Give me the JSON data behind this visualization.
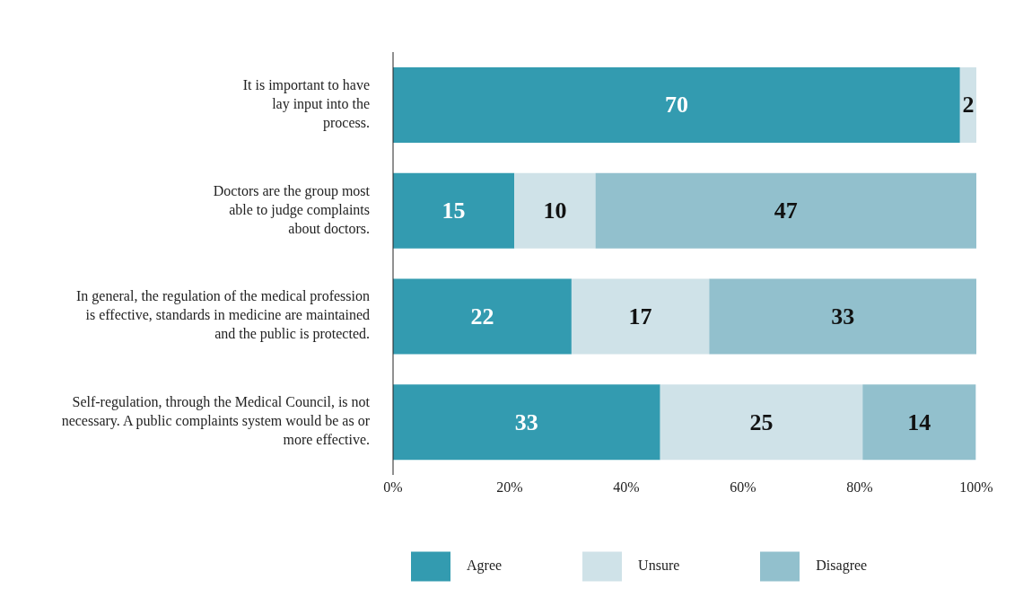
{
  "chart_data": {
    "type": "bar",
    "orientation": "horizontal",
    "stacked": true,
    "categories": [
      "It is important to have lay input into the process.",
      "Doctors are the group most able to judge complaints about doctors.",
      "In general, the regulation of the medical profession is effective, standards in medicine are maintained and the public is protected.",
      "Self-regulation, through the Medical Council, is not necessary. A public complaints system would be as or more effective."
    ],
    "series": [
      {
        "name": "Agree",
        "color": "#339bb0",
        "values": [
          97.2,
          20.8,
          30.6,
          45.8
        ]
      },
      {
        "name": "Unsure",
        "color": "#cfe2e8",
        "values": [
          2.8,
          13.9,
          23.6,
          34.7
        ]
      },
      {
        "name": "Disagree",
        "color": "#92c0cd",
        "values": [
          null,
          65.3,
          45.8,
          19.4
        ]
      }
    ],
    "annotations": [
      "70",
      "2",
      "15",
      "10",
      "47",
      "22",
      "17",
      "33",
      "33",
      "25",
      "14"
    ],
    "xlim": [
      0,
      100
    ],
    "xticks": [
      {
        "value": 0,
        "label": "0%"
      },
      {
        "value": 20,
        "label": "20%"
      },
      {
        "value": 40,
        "label": "40%"
      },
      {
        "value": 60,
        "label": "60%"
      },
      {
        "value": 80,
        "label": "80%"
      },
      {
        "value": 100,
        "label": "100%"
      }
    ],
    "legend": "bottom",
    "grid": false
  }
}
